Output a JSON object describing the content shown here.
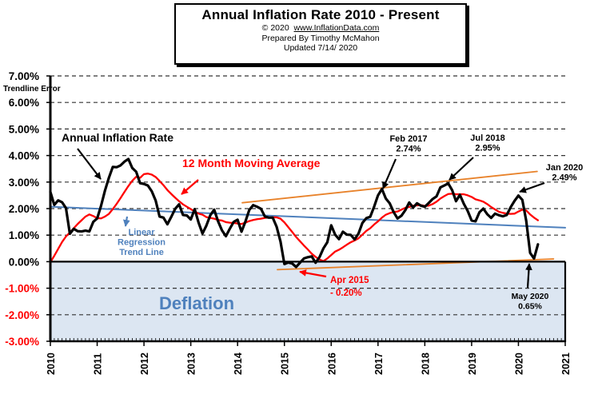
{
  "header": {
    "title": "Annual  Inflation Rate 2010 - Present",
    "copyright": "© 2020",
    "website": "www.InflationData.com",
    "prepared_by": "Prepared  By Timothy  McMahon",
    "updated": "Updated   7/14/ 2020"
  },
  "colors": {
    "inflation": "#000000",
    "moving_average": "#ff0000",
    "linear_trend": "#4f81bd",
    "channel": "#e8822a",
    "deflation_fill": "#dce6f2",
    "negative_tick": "#ff0000",
    "deflation_text": "#4f81bd"
  },
  "chart_data": {
    "type": "line",
    "title": "Annual  Inflation Rate 2010 - Present",
    "xlabel": "",
    "ylabel": "",
    "x_range": [
      2010,
      2021
    ],
    "ylim": [
      -3.0,
      7.0
    ],
    "grid": true,
    "y_ticks": [
      "-3.00%",
      "-2.00%",
      "-1.00%",
      "0.00%",
      "1.00%",
      "2.00%",
      "3.00%",
      "4.00%",
      "5.00%",
      "6.00%",
      "7.00%"
    ],
    "x_ticks": [
      "2010",
      "2011",
      "2012",
      "2013",
      "2014",
      "2015",
      "2016",
      "2017",
      "2018",
      "2019",
      "2020",
      "2021"
    ],
    "y_axis_note": "Trendline  Error",
    "series": [
      {
        "name": "Annual Inflation Rate",
        "start": "2010-01",
        "frequency": "monthly",
        "values": [
          2.63,
          2.14,
          2.31,
          2.24,
          2.02,
          1.05,
          1.24,
          1.15,
          1.14,
          1.17,
          1.14,
          1.5,
          1.63,
          2.11,
          2.68,
          3.16,
          3.57,
          3.56,
          3.63,
          3.77,
          3.87,
          3.53,
          3.39,
          2.96,
          2.93,
          2.87,
          2.65,
          2.3,
          1.7,
          1.66,
          1.41,
          1.69,
          1.99,
          2.16,
          1.76,
          1.74,
          1.59,
          1.98,
          1.47,
          1.06,
          1.36,
          1.75,
          1.96,
          1.52,
          1.18,
          0.96,
          1.24,
          1.5,
          1.58,
          1.13,
          1.51,
          1.95,
          2.13,
          2.07,
          1.99,
          1.7,
          1.66,
          1.66,
          1.32,
          0.76,
          -0.09,
          -0.03,
          -0.07,
          -0.2,
          -0.04,
          0.12,
          0.17,
          0.2,
          -0.04,
          0.17,
          0.5,
          0.73,
          1.37,
          1.02,
          0.85,
          1.13,
          1.02,
          1.01,
          0.84,
          1.06,
          1.46,
          1.64,
          1.69,
          2.07,
          2.5,
          2.74,
          2.38,
          2.2,
          1.87,
          1.63,
          1.73,
          1.94,
          2.23,
          2.04,
          2.2,
          2.11,
          2.07,
          2.21,
          2.36,
          2.46,
          2.8,
          2.87,
          2.95,
          2.7,
          2.28,
          2.52,
          2.18,
          1.91,
          1.55,
          1.52,
          1.86,
          2.0,
          1.79,
          1.65,
          1.81,
          1.75,
          1.71,
          1.76,
          2.05,
          2.29,
          2.49,
          2.33,
          1.54,
          0.33,
          0.12,
          0.65
        ]
      },
      {
        "name": "12 Month Moving Average",
        "start": "2010-01",
        "frequency": "monthly",
        "values": [
          -0.02,
          0.22,
          0.48,
          0.74,
          0.95,
          1.1,
          1.26,
          1.42,
          1.56,
          1.7,
          1.78,
          1.72,
          1.64,
          1.63,
          1.7,
          1.8,
          1.98,
          2.18,
          2.4,
          2.63,
          2.85,
          3.05,
          3.2,
          3.16,
          3.3,
          3.32,
          3.28,
          3.19,
          3.04,
          2.88,
          2.7,
          2.55,
          2.41,
          2.28,
          2.16,
          2.07,
          1.98,
          1.89,
          1.81,
          1.77,
          1.68,
          1.65,
          1.62,
          1.57,
          1.55,
          1.49,
          1.47,
          1.46,
          1.44,
          1.42,
          1.47,
          1.53,
          1.57,
          1.6,
          1.62,
          1.65,
          1.66,
          1.67,
          1.67,
          1.62,
          1.48,
          1.3,
          1.12,
          0.93,
          0.77,
          0.61,
          0.46,
          0.3,
          0.18,
          0.08,
          0.02,
          0.12,
          0.25,
          0.38,
          0.45,
          0.54,
          0.64,
          0.73,
          0.8,
          0.88,
          1.02,
          1.16,
          1.26,
          1.4,
          1.52,
          1.66,
          1.77,
          1.83,
          1.87,
          1.89,
          1.96,
          2.03,
          2.06,
          2.11,
          2.12,
          2.13,
          2.1,
          2.11,
          2.17,
          2.26,
          2.38,
          2.47,
          2.55,
          2.56,
          2.54,
          2.54,
          2.54,
          2.5,
          2.44,
          2.35,
          2.31,
          2.26,
          2.17,
          2.06,
          1.97,
          1.88,
          1.84,
          1.81,
          1.8,
          1.81,
          1.89,
          1.96,
          1.93,
          1.78,
          1.66,
          1.56
        ]
      },
      {
        "name": "Linear Regression Trend Line",
        "type": "trend",
        "x": [
          2010.0,
          2021.0
        ],
        "values": [
          2.07,
          1.28
        ]
      },
      {
        "name": "Upper Channel",
        "type": "trend",
        "x": [
          2014.1,
          2020.4
        ],
        "values": [
          2.22,
          3.4
        ]
      },
      {
        "name": "Lower Channel",
        "type": "trend",
        "x": [
          2014.85,
          2020.75
        ],
        "values": [
          -0.3,
          0.1
        ]
      }
    ],
    "shaded_regions": [
      {
        "name": "Deflation",
        "y_from": -3.0,
        "y_to": 0.0
      }
    ],
    "annotations": [
      {
        "name": "inflation-label",
        "lines": [
          "Annual Inflation Rate"
        ],
        "color": "#000000"
      },
      {
        "name": "moving-average-label",
        "lines": [
          "12 Month Moving Average"
        ],
        "color": "#ff0000"
      },
      {
        "name": "trend-label",
        "lines": [
          "Linear",
          "Regression",
          "Trend Line"
        ],
        "color": "#4f81bd"
      },
      {
        "name": "feb-2017",
        "lines": [
          "Feb 2017",
          "2.74%"
        ],
        "color": "#000000",
        "point": [
          2017.08,
          2.74
        ]
      },
      {
        "name": "jul-2018",
        "lines": [
          "Jul 2018",
          "2.95%"
        ],
        "color": "#000000",
        "point": [
          2018.5,
          2.95
        ]
      },
      {
        "name": "jan-2020",
        "lines": [
          "Jan 2020",
          "2.49%"
        ],
        "color": "#000000",
        "point": [
          2020.0,
          2.49
        ]
      },
      {
        "name": "may-2020",
        "lines": [
          "May 2020",
          "0.65%"
        ],
        "color": "#000000",
        "point": [
          2020.33,
          0.12
        ]
      },
      {
        "name": "apr-2015",
        "lines": [
          "Apr 2015",
          "- 0.20%"
        ],
        "color": "#ff0000",
        "point": [
          2015.25,
          -0.2
        ]
      },
      {
        "name": "deflation",
        "lines": [
          "Deflation"
        ],
        "color": "#4f81bd"
      }
    ]
  }
}
